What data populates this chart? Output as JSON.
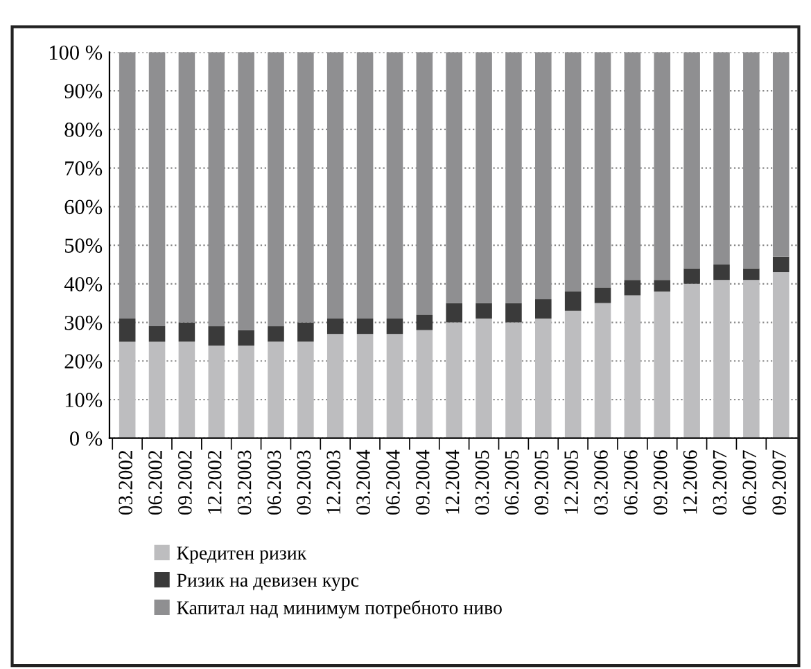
{
  "chart_data": {
    "type": "bar",
    "stacked": true,
    "categories": [
      "03.2002",
      "06.2002",
      "09.2002",
      "12.2002",
      "03.2003",
      "06.2003",
      "09.2003",
      "12.2003",
      "03.2004",
      "06.2004",
      "09.2004",
      "12.2004",
      "03.2005",
      "06.2005",
      "09.2005",
      "12.2005",
      "03.2006",
      "06.2006",
      "09.2006",
      "12.2006",
      "03.2007",
      "06.2007",
      "09.2007"
    ],
    "series": [
      {
        "name": "Кредитен ризик",
        "color": "#bdbdbf",
        "values": [
          25,
          25,
          25,
          24,
          24,
          25,
          25,
          27,
          27,
          27,
          28,
          30,
          31,
          30,
          31,
          33,
          35,
          37,
          38,
          40,
          41,
          41,
          43
        ]
      },
      {
        "name": "Ризик на девизен курс",
        "color": "#3a3a3a",
        "values": [
          6,
          4,
          5,
          5,
          4,
          4,
          5,
          4,
          4,
          4,
          4,
          5,
          4,
          5,
          5,
          5,
          4,
          4,
          3,
          4,
          4,
          3,
          4
        ]
      },
      {
        "name": "Капитал над минимум потребното ниво",
        "color": "#8f8f91",
        "values": [
          69,
          71,
          70,
          71,
          72,
          71,
          70,
          69,
          69,
          69,
          68,
          65,
          65,
          65,
          64,
          62,
          61,
          59,
          59,
          56,
          55,
          56,
          53
        ]
      }
    ],
    "ylim": [
      0,
      100
    ],
    "yticks": [
      {
        "value": 0,
        "label": "0 %"
      },
      {
        "value": 10,
        "label": "10%"
      },
      {
        "value": 20,
        "label": "20%"
      },
      {
        "value": 30,
        "label": "30%"
      },
      {
        "value": 40,
        "label": "40%"
      },
      {
        "value": 50,
        "label": "50%"
      },
      {
        "value": 60,
        "label": "60%"
      },
      {
        "value": 70,
        "label": "70%"
      },
      {
        "value": 80,
        "label": "80%"
      },
      {
        "value": 90,
        "label": "90%"
      },
      {
        "value": 100,
        "label": "100 %"
      }
    ],
    "grid": "y",
    "legend": "bottom"
  }
}
